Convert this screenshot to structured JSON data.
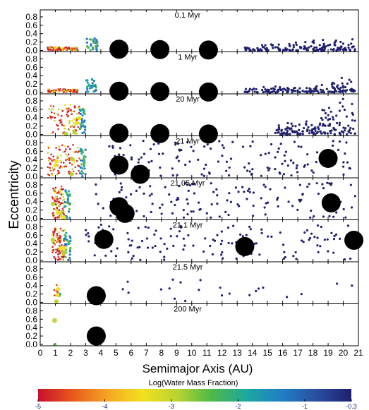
{
  "chart_data": {
    "type": "scatter",
    "xlabel": "Semimajor Axis (AU)",
    "ylabel": "Eccentricity",
    "xlim": [
      0,
      21
    ],
    "ylim": [
      0,
      0.9
    ],
    "xticks": [
      "0",
      "1",
      "2",
      "3",
      "4",
      "5",
      "6",
      "7",
      "8",
      "9",
      "10",
      "11",
      "12",
      "13",
      "14",
      "15",
      "16",
      "17",
      "18",
      "19",
      "20",
      "21"
    ],
    "yticks": [
      "0.0",
      "0.2",
      "0.4",
      "0.6",
      "0.8"
    ],
    "colorbar": {
      "label": "Log(Water Mass Fraction)",
      "range": [
        -5,
        -0.3
      ],
      "ticks": [
        "-5",
        "-4",
        "-3",
        "-2",
        "-1",
        "-0.3"
      ],
      "colors": [
        "#c8102e",
        "#e8591a",
        "#f5a623",
        "#f2e01e",
        "#b8d430",
        "#4db848",
        "#1aa8a0",
        "#1f7fc4",
        "#2a4ea0",
        "#1f1f6e"
      ]
    },
    "panels": [
      {
        "time": "0.1 Myr",
        "giants": [
          {
            "a": 5.2,
            "e": 0.03
          },
          {
            "a": 7.9,
            "e": 0.02
          },
          {
            "a": 11.1,
            "e": 0.01
          }
        ],
        "disk": {
          "inner": [
            0.5,
            2.5
          ],
          "outer": [
            3.0,
            3.8
          ],
          "halo": [
            13.5,
            20.8
          ],
          "emax": 0.3
        }
      },
      {
        "time": "1 Myr",
        "giants": [
          {
            "a": 5.2,
            "e": 0.03
          },
          {
            "a": 7.9,
            "e": 0.02
          },
          {
            "a": 11.1,
            "e": 0.01
          }
        ],
        "disk": {
          "inner": [
            0.5,
            2.5
          ],
          "outer": [
            3.0,
            3.8
          ],
          "halo": [
            13.5,
            20.8
          ],
          "emax": 0.32
        }
      },
      {
        "time": "20 Myr",
        "giants": [
          {
            "a": 5.2,
            "e": 0.03
          },
          {
            "a": 7.9,
            "e": 0.02
          },
          {
            "a": 11.1,
            "e": 0.01
          }
        ],
        "disk": {
          "inner": [
            0.5,
            2.6
          ],
          "outer": [
            2.6,
            3.0
          ],
          "halo": [
            15.5,
            20.8
          ],
          "emax": 0.8
        }
      },
      {
        "time": "21 Myr",
        "giants": [
          {
            "a": 5.2,
            "e": 0.27
          },
          {
            "a": 6.6,
            "e": 0.05
          },
          {
            "a": 19.0,
            "e": 0.43
          }
        ],
        "disk": {
          "inner": [
            0.5,
            2.6
          ],
          "outer": [
            2.6,
            3.0
          ],
          "halo": [
            4.5,
            20.8
          ],
          "emax": 0.85
        }
      },
      {
        "time": "21.05 Myr",
        "giants": [
          {
            "a": 5.2,
            "e": 0.28
          },
          {
            "a": 5.6,
            "e": 0.12
          },
          {
            "a": 19.2,
            "e": 0.37
          }
        ],
        "disk": {
          "inner": [
            0.8,
            1.6
          ],
          "outer": [
            1.6,
            2.0
          ],
          "halo": [
            3.5,
            20.8
          ],
          "emax": 0.85
        }
      },
      {
        "time": "21.1 Myr",
        "giants": [
          {
            "a": 4.2,
            "e": 0.5
          },
          {
            "a": 13.5,
            "e": 0.33
          },
          {
            "a": 20.7,
            "e": 0.48
          }
        ],
        "disk": {
          "inner": [
            0.8,
            1.6
          ],
          "outer": [
            1.6,
            2.0
          ],
          "halo": [
            3.0,
            20.8
          ],
          "emax": 0.85
        }
      },
      {
        "time": "21.5 Myr",
        "giants": [
          {
            "a": 3.7,
            "e": 0.16
          }
        ],
        "disk": {
          "inner": [
            0.9,
            1.2
          ],
          "outer": [
            1.2,
            1.4
          ],
          "halo": [
            5.0,
            20.8
          ],
          "emax": 0.55
        }
      },
      {
        "time": "200 Myr",
        "giants": [],
        "final_planets": [
          {
            "a": 3.7,
            "e": 0.2
          },
          {
            "a": 0.95,
            "e": 0.57
          }
        ],
        "disk": {
          "inner": [
            0.9,
            1.0
          ],
          "outer": [
            1.0,
            1.0
          ],
          "halo": [
            0,
            0
          ],
          "emax": 0.0
        }
      }
    ]
  }
}
